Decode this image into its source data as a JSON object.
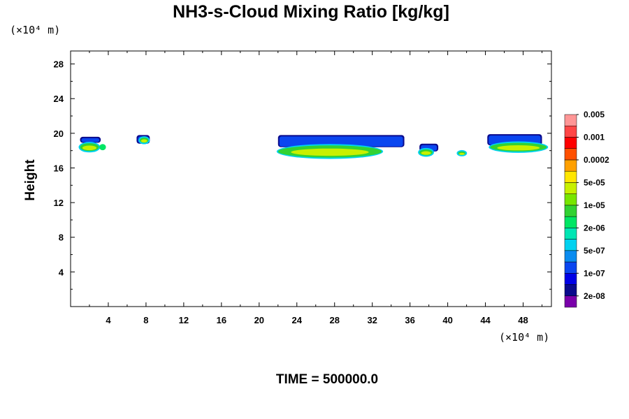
{
  "chart_data": {
    "type": "heatmap",
    "title": "NH3-s-Cloud Mixing Ratio [kg/kg]",
    "ylabel": "Height",
    "x_unit": "(×10⁴ m)",
    "y_unit": "(×10⁴ m)",
    "x_ticks": [
      4,
      8,
      12,
      16,
      20,
      24,
      28,
      32,
      36,
      40,
      44,
      48
    ],
    "y_ticks": [
      4,
      8,
      12,
      16,
      20,
      24,
      28
    ],
    "xlim": [
      0,
      51
    ],
    "ylim": [
      0,
      29.5
    ],
    "time_label": "TIME = 500000.0",
    "colorbar": {
      "colors": [
        "#7a00aa",
        "#0a0a8c",
        "#0000e6",
        "#0a46f0",
        "#0a8cf0",
        "#00d2f0",
        "#00e6b4",
        "#00e664",
        "#32d232",
        "#78e600",
        "#c8f000",
        "#ffe600",
        "#ffa000",
        "#ff5000",
        "#ff0000",
        "#ff4646",
        "#ff9696"
      ],
      "labels": [
        "2e-08",
        "1e-07",
        "5e-07",
        "2e-06",
        "1e-05",
        "5e-05",
        "0.0002",
        "0.001",
        "0.005"
      ]
    },
    "clouds": [
      {
        "x0": 1.0,
        "x1": 3.2,
        "ytop": 19.6,
        "ybot": 18.9,
        "cx": 2.0,
        "cy": 18.4,
        "cw": 2.0,
        "ch": 0.9,
        "cx2": 3.4,
        "cw2": 0.7
      },
      {
        "x0": 7.0,
        "x1": 8.4,
        "ytop": 19.8,
        "ybot": 18.8,
        "cx": 7.8,
        "cy": 19.2,
        "cw": 0.9,
        "ch": 0.6
      },
      {
        "x0": 22.0,
        "x1": 35.4,
        "ytop": 19.8,
        "ybot": 18.4,
        "cx": 27.5,
        "cy": 17.9,
        "cw": 11.0,
        "ch": 1.4
      },
      {
        "x0": 37.0,
        "x1": 39.0,
        "ytop": 18.8,
        "ybot": 17.9,
        "cx": 37.7,
        "cy": 17.8,
        "cw": 1.4,
        "ch": 0.7
      },
      {
        "x0": 41.0,
        "x1": 42.0,
        "ytop": 17.9,
        "ybot": 17.6,
        "cx": 41.5,
        "cy": 17.7,
        "cw": 0.8,
        "ch": 0.4
      },
      {
        "x0": 44.2,
        "x1": 50.0,
        "ytop": 19.9,
        "ybot": 18.6,
        "cx": 47.5,
        "cy": 18.4,
        "cw": 6.0,
        "ch": 1.0
      }
    ]
  }
}
